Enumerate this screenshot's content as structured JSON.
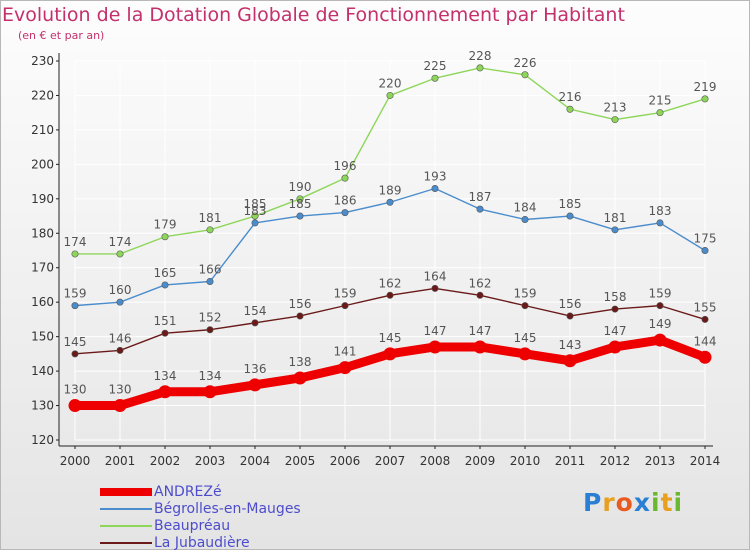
{
  "title": "Evolution de la Dotation Globale de Fonctionnement par Habitant",
  "subtitle": "(en € et par an)",
  "logo": "Proxiti",
  "colors": {
    "title": "#c4306b",
    "legend_text": "#4d4dcc",
    "axis": "#222222",
    "grid": "#ffffff"
  },
  "chart_data": {
    "type": "line",
    "title": "Evolution de la Dotation Globale de Fonctionnement par Habitant",
    "subtitle": "(en € et par an)",
    "xlabel": "",
    "ylabel": "",
    "x": [
      "2000",
      "2001",
      "2002",
      "2003",
      "2004",
      "2005",
      "2006",
      "2007",
      "2008",
      "2009",
      "2010",
      "2011",
      "2012",
      "2013",
      "2014"
    ],
    "ylim": [
      120,
      230
    ],
    "yticks": [
      120,
      130,
      140,
      150,
      160,
      170,
      180,
      190,
      200,
      210,
      220,
      230
    ],
    "grid": true,
    "legend_position": "bottom",
    "series": [
      {
        "name": "ANDREZé",
        "color": "#ee0000",
        "values": [
          130,
          130,
          134,
          134,
          136,
          138,
          141,
          145,
          147,
          147,
          145,
          143,
          147,
          149,
          144
        ]
      },
      {
        "name": "Bégrolles-en-Mauges",
        "color": "#4a8ccc",
        "values": [
          159,
          160,
          165,
          166,
          183,
          185,
          186,
          189,
          193,
          187,
          184,
          185,
          181,
          183,
          175
        ]
      },
      {
        "name": "Beaupréau",
        "color": "#8ed65a",
        "values": [
          174,
          174,
          179,
          181,
          185,
          190,
          196,
          220,
          225,
          228,
          226,
          216,
          213,
          215,
          219
        ]
      },
      {
        "name": "La Jubaudière",
        "color": "#6b1a1a",
        "values": [
          145,
          146,
          151,
          152,
          154,
          156,
          159,
          162,
          164,
          162,
          159,
          156,
          158,
          159,
          155
        ]
      }
    ]
  }
}
